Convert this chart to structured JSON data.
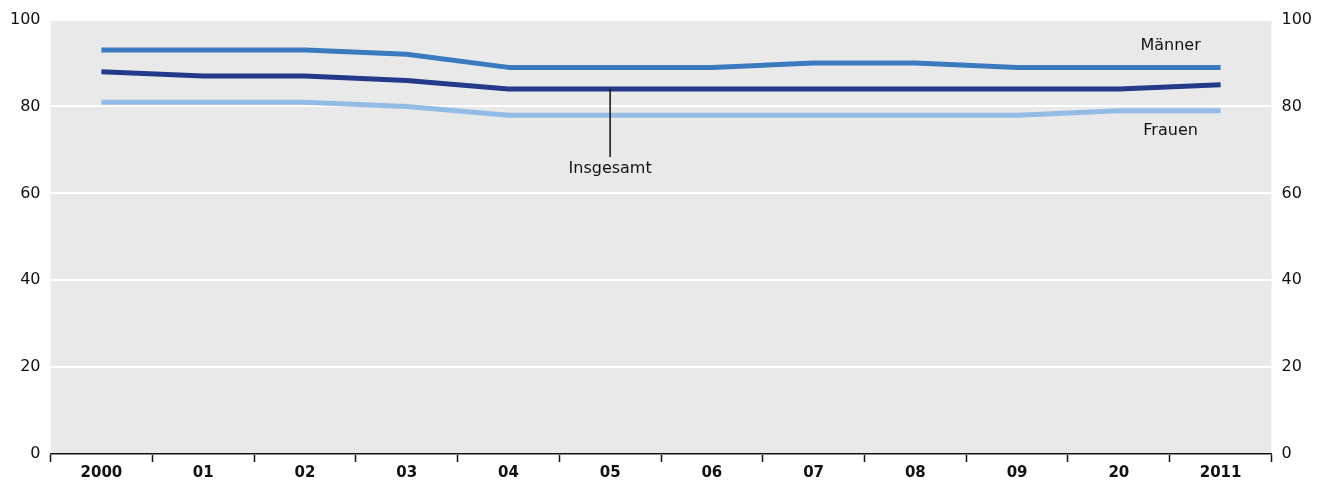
{
  "chart_data": {
    "type": "line",
    "categories": [
      "2000",
      "01",
      "02",
      "03",
      "04",
      "05",
      "06",
      "07",
      "08",
      "09",
      "20",
      "2011"
    ],
    "series": [
      {
        "name": "Männer",
        "color": "#3a7bc0",
        "values": [
          93,
          93,
          93,
          92,
          89,
          89,
          89,
          90,
          90,
          89,
          89,
          89
        ]
      },
      {
        "name": "Insgesamt",
        "color": "#233a8a",
        "values": [
          88,
          87,
          87,
          86,
          84,
          84,
          84,
          84,
          84,
          84,
          84,
          85
        ]
      },
      {
        "name": "Frauen",
        "color": "#92bce6",
        "values": [
          81,
          81,
          81,
          80,
          78,
          78,
          78,
          78,
          78,
          78,
          79,
          79
        ]
      }
    ],
    "ylim": [
      0,
      100
    ],
    "yticks": [
      0,
      20,
      40,
      60,
      80,
      100
    ],
    "y2lim": [
      0,
      100
    ],
    "y2ticks": [
      0,
      20,
      40,
      60,
      80,
      100
    ],
    "grid": "y",
    "legend": false,
    "marker": "none",
    "line_style": "solid"
  }
}
